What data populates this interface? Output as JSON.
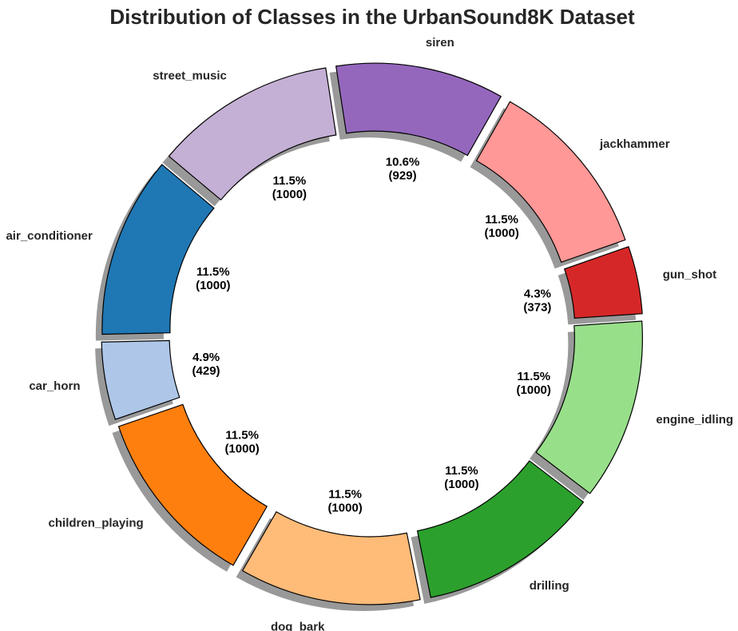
{
  "chart_data": {
    "type": "pie",
    "variant": "donut",
    "title": "Distribution of Classes in the UrbanSound8K Dataset",
    "shadow": true,
    "slices": [
      {
        "label": "air_conditioner",
        "value": 1000,
        "pct_text": "11.5%",
        "count_text": "(1000)",
        "color": "#1f77b4"
      },
      {
        "label": "car_horn",
        "value": 429,
        "pct_text": "4.9%",
        "count_text": "(429)",
        "color": "#aec7e8"
      },
      {
        "label": "children_playing",
        "value": 1000,
        "pct_text": "11.5%",
        "count_text": "(1000)",
        "color": "#ff7f0e"
      },
      {
        "label": "dog_bark",
        "value": 1000,
        "pct_text": "11.5%",
        "count_text": "(1000)",
        "color": "#ffbb78"
      },
      {
        "label": "drilling",
        "value": 1000,
        "pct_text": "11.5%",
        "count_text": "(1000)",
        "color": "#2ca02c"
      },
      {
        "label": "engine_idling",
        "value": 1000,
        "pct_text": "11.5%",
        "count_text": "(1000)",
        "color": "#98df8a"
      },
      {
        "label": "gun_shot",
        "value": 373,
        "pct_text": "4.3%",
        "count_text": "(373)",
        "color": "#d62728"
      },
      {
        "label": "jackhammer",
        "value": 1000,
        "pct_text": "11.5%",
        "count_text": "(1000)",
        "color": "#ff9896"
      },
      {
        "label": "siren",
        "value": 929,
        "pct_text": "10.6%",
        "count_text": "(929)",
        "color": "#9467bd"
      },
      {
        "label": "street_music",
        "value": 1000,
        "pct_text": "11.5%",
        "count_text": "(1000)",
        "color": "#c5b0d5"
      }
    ]
  }
}
